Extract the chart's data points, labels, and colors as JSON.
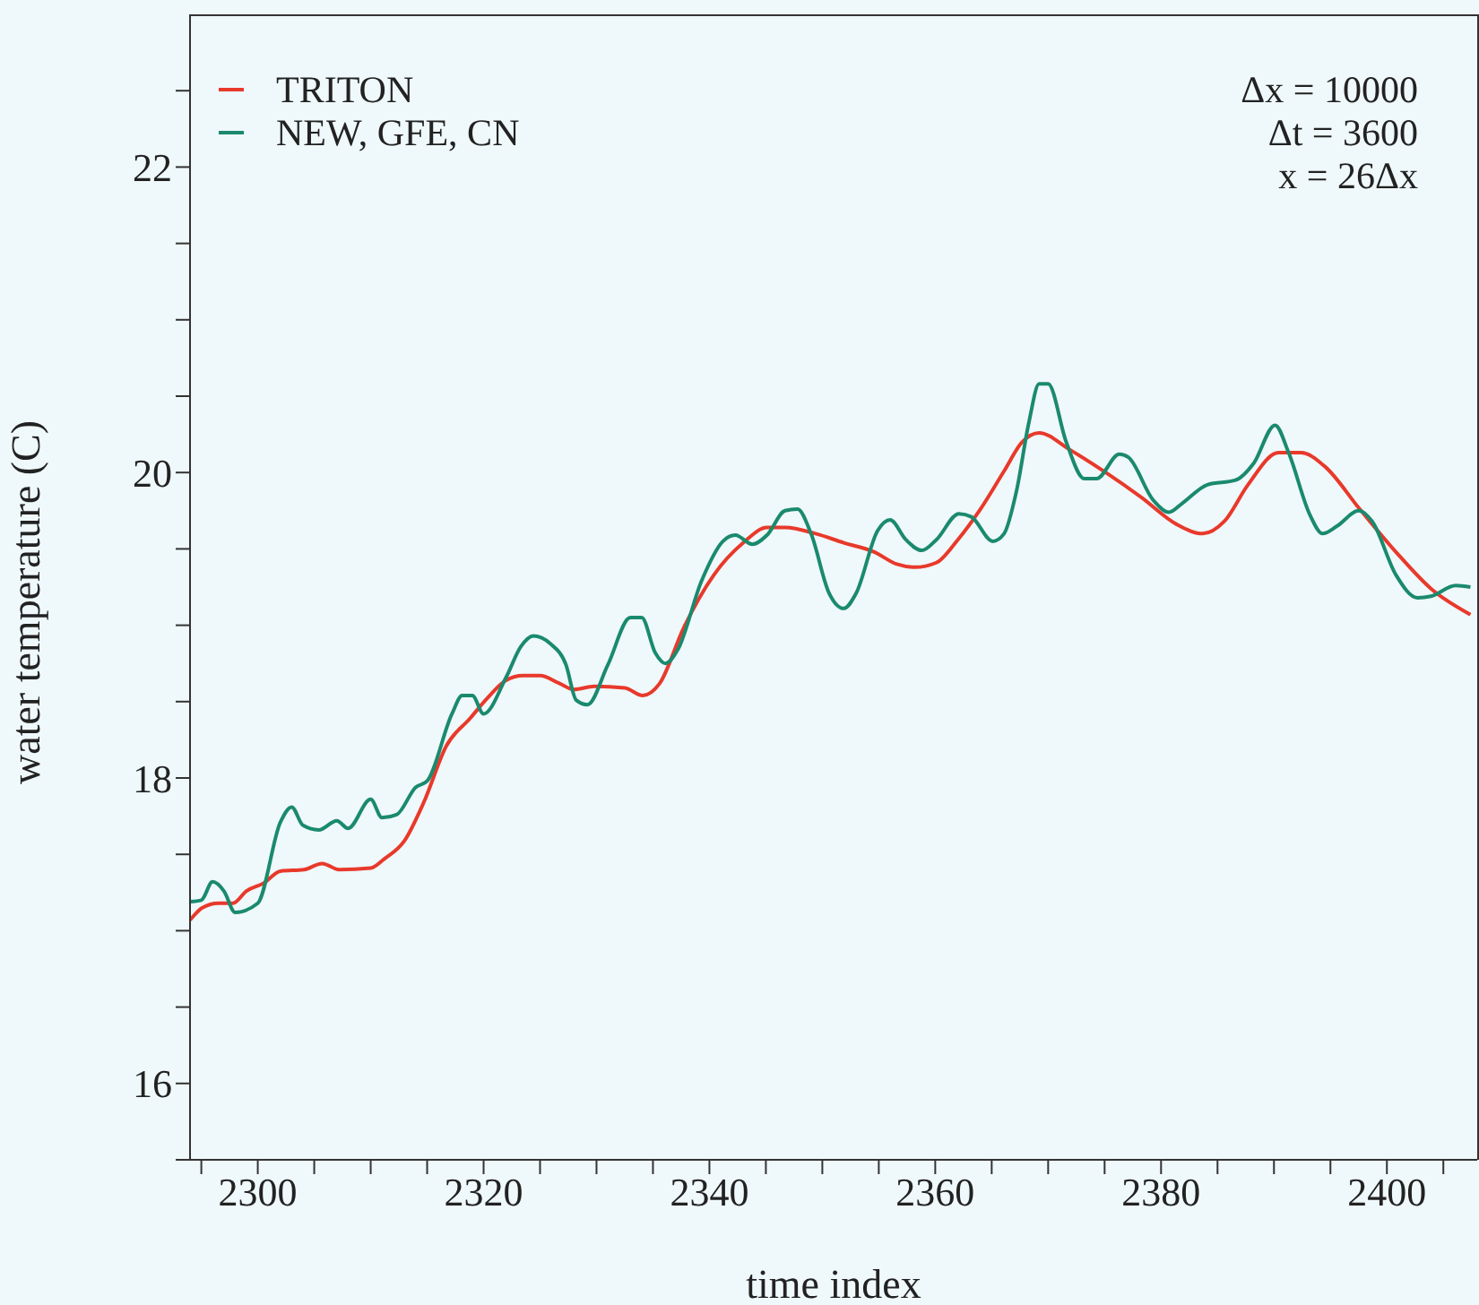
{
  "chart_data": {
    "type": "line",
    "xlabel": "time index",
    "ylabel": "water temperature (C)",
    "xlim": [
      2294,
      2408
    ],
    "ylim": [
      15.5,
      23
    ],
    "xticks": [
      {
        "value": 2295,
        "label": null
      },
      2300,
      {
        "value": 2305,
        "label": null
      },
      {
        "value": 2310,
        "label": null
      },
      {
        "value": 2315,
        "label": null
      },
      2320,
      {
        "value": 2325,
        "label": null
      },
      {
        "value": 2330,
        "label": null
      },
      {
        "value": 2335,
        "label": null
      },
      2340,
      {
        "value": 2345,
        "label": null
      },
      {
        "value": 2350,
        "label": null
      },
      {
        "value": 2355,
        "label": null
      },
      2360,
      {
        "value": 2365,
        "label": null
      },
      {
        "value": 2370,
        "label": null
      },
      {
        "value": 2375,
        "label": null
      },
      2380,
      {
        "value": 2385,
        "label": null
      },
      {
        "value": 2390,
        "label": null
      },
      {
        "value": 2395,
        "label": null
      },
      2400,
      {
        "value": 2405,
        "label": null
      }
    ],
    "yticks": [
      {
        "value": 15.5,
        "label": null
      },
      16,
      {
        "value": 16.5,
        "label": null
      },
      {
        "value": 17,
        "label": null
      },
      {
        "value": 17.5,
        "label": null
      },
      18,
      {
        "value": 18.5,
        "label": null
      },
      {
        "value": 19,
        "label": null
      },
      {
        "value": 19.5,
        "label": null
      },
      20,
      {
        "value": 20.5,
        "label": null
      },
      {
        "value": 21,
        "label": null
      },
      {
        "value": 21.5,
        "label": null
      },
      22,
      {
        "value": 22.5,
        "label": null
      }
    ],
    "legend": "top left",
    "marker": "none",
    "line_style": "solid",
    "annotations": [
      "Δx = 10000",
      "Δt = 3600",
      "x = 26Δx"
    ],
    "series": [
      {
        "name": "TRITON",
        "color": "#e8392b",
        "x": [
          2294,
          2295.1,
          2296.5,
          2297.8,
          2299,
          2300.5,
          2302,
          2304.1,
          2305.7,
          2307.2,
          2310,
          2311.2,
          2313,
          2314.7,
          2316.7,
          2318.8,
          2320.3,
          2322,
          2323.5,
          2325,
          2326.7,
          2328,
          2329.8,
          2332.5,
          2334.1,
          2335.6,
          2337.7,
          2340.4,
          2343,
          2345.1,
          2346.7,
          2349.4,
          2351.9,
          2354.6,
          2356.6,
          2358.2,
          2360.1,
          2362,
          2364,
          2366.1,
          2367.7,
          2369.2,
          2371.9,
          2375.1,
          2378.2,
          2381.4,
          2383.7,
          2385.6,
          2387.7,
          2390.4,
          2392.4,
          2394.5,
          2397.6,
          2400.8,
          2403.9,
          2407.4
        ],
        "values": [
          17.07,
          17.15,
          17.18,
          17.18,
          17.26,
          17.31,
          17.39,
          17.4,
          17.44,
          17.4,
          17.41,
          17.47,
          17.59,
          17.84,
          18.21,
          18.39,
          18.52,
          18.64,
          18.67,
          18.67,
          18.62,
          18.58,
          18.6,
          18.59,
          18.54,
          18.62,
          18.98,
          19.33,
          19.54,
          19.64,
          19.64,
          19.6,
          19.54,
          19.48,
          19.4,
          19.38,
          19.41,
          19.56,
          19.76,
          20.01,
          20.2,
          20.26,
          20.15,
          20.0,
          19.84,
          19.66,
          19.6,
          19.68,
          19.92,
          20.13,
          20.13,
          20.04,
          19.76,
          19.48,
          19.24,
          19.07
        ]
      },
      {
        "name": "NEW, GFE, CN",
        "color": "#1a8a6e",
        "x": [
          2294,
          2295,
          2296,
          2297,
          2298,
          2300,
          2302,
          2303,
          2304,
          2305.4,
          2307,
          2308,
          2310,
          2311,
          2312.3,
          2314,
          2315,
          2317.2,
          2318.1,
          2319,
          2320,
          2322,
          2323.3,
          2324.4,
          2325.9,
          2327.3,
          2328.2,
          2329.2,
          2331,
          2333,
          2334,
          2335.2,
          2336.1,
          2337.2,
          2339.3,
          2341.2,
          2342.3,
          2343.8,
          2345.1,
          2346.7,
          2347.8,
          2349,
          2350.6,
          2351.9,
          2353,
          2354.9,
          2356,
          2357.4,
          2358.8,
          2360.1,
          2362.1,
          2363.2,
          2365.1,
          2366.1,
          2367.2,
          2368.3,
          2369.2,
          2370,
          2371.6,
          2373.2,
          2374.3,
          2376.3,
          2377.1,
          2379.3,
          2380.7,
          2381.9,
          2384.1,
          2386.6,
          2388.2,
          2390.1,
          2391.3,
          2393.2,
          2394.3,
          2395.6,
          2397.5,
          2398.7,
          2400.8,
          2402.7,
          2403.9,
          2406.1,
          2407.4
        ],
        "values": [
          17.19,
          17.2,
          17.32,
          17.26,
          17.12,
          17.18,
          17.71,
          17.81,
          17.69,
          17.66,
          17.72,
          17.67,
          17.86,
          17.74,
          17.76,
          17.94,
          17.98,
          18.42,
          18.54,
          18.54,
          18.42,
          18.66,
          18.86,
          18.93,
          18.88,
          18.74,
          18.51,
          18.48,
          18.74,
          19.05,
          19.05,
          18.82,
          18.75,
          18.84,
          19.29,
          19.55,
          19.59,
          19.53,
          19.59,
          19.75,
          19.76,
          19.6,
          19.21,
          19.11,
          19.21,
          19.62,
          19.69,
          19.56,
          19.49,
          19.56,
          19.73,
          19.71,
          19.55,
          19.6,
          19.88,
          20.33,
          20.58,
          20.58,
          20.2,
          19.96,
          19.96,
          20.12,
          20.1,
          19.82,
          19.74,
          19.8,
          19.92,
          19.95,
          20.06,
          20.31,
          20.13,
          19.72,
          19.6,
          19.65,
          19.75,
          19.68,
          19.33,
          19.18,
          19.19,
          19.26,
          19.25
        ]
      }
    ]
  }
}
